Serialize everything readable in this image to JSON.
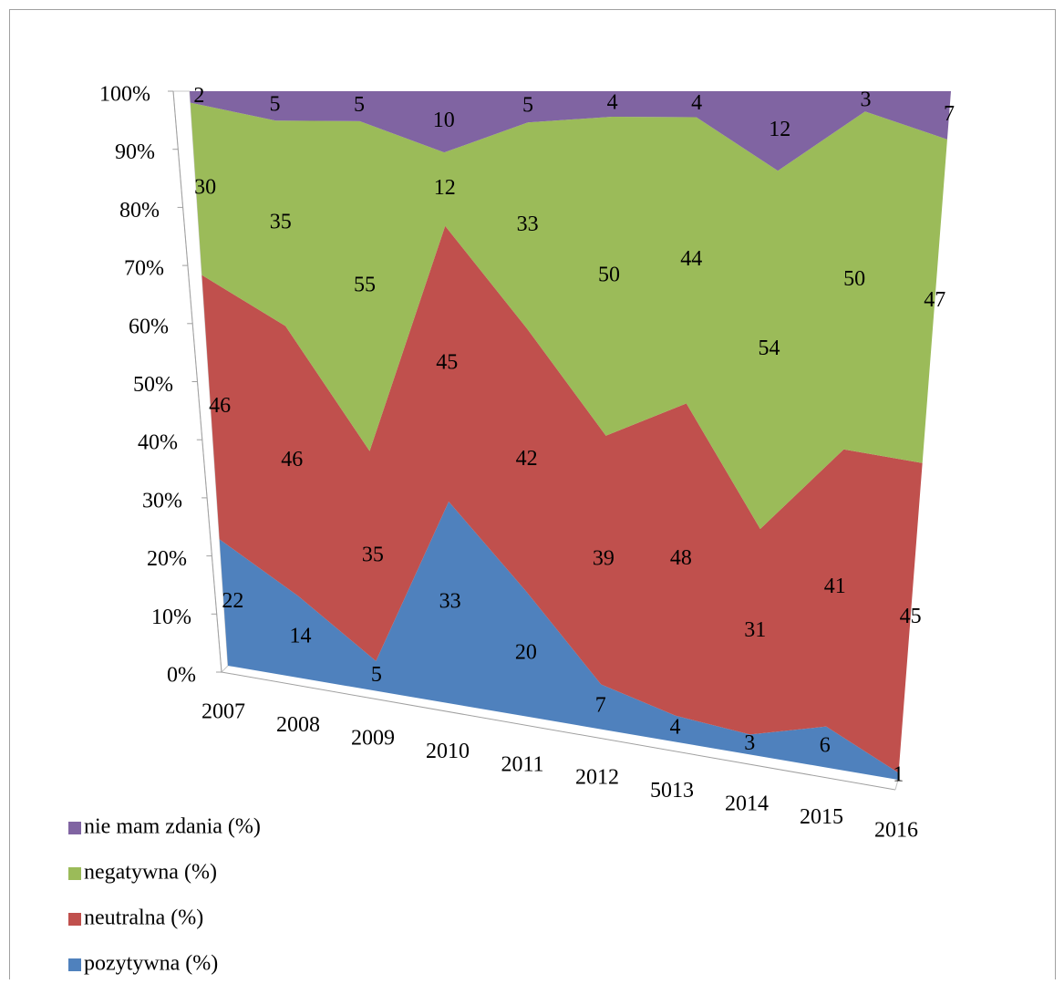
{
  "chart_data": {
    "type": "stacked_area_3d",
    "categories": [
      "2007",
      "2008",
      "2009",
      "2010",
      "2011",
      "2012",
      "5013",
      "2014",
      "2015",
      "2016"
    ],
    "series": [
      {
        "name": "pozytywna (%)",
        "color": "#4f81bd",
        "values": [
          22,
          14,
          5,
          33,
          20,
          7,
          4,
          3,
          6,
          1
        ]
      },
      {
        "name": "neutralna (%)",
        "color": "#c0504d",
        "values": [
          46,
          46,
          35,
          45,
          42,
          39,
          48,
          31,
          41,
          45
        ]
      },
      {
        "name": "negatywna (%)",
        "color": "#9bbb59",
        "values": [
          30,
          35,
          55,
          12,
          33,
          50,
          44,
          54,
          50,
          47
        ]
      },
      {
        "name": "nie mam zdania (%)",
        "color": "#8064a2",
        "values": [
          2,
          5,
          5,
          10,
          5,
          4,
          4,
          12,
          3,
          7
        ]
      }
    ],
    "ylim": [
      0,
      100
    ],
    "yticks": [
      {
        "value": 0,
        "label": "0%"
      },
      {
        "value": 10,
        "label": "10%"
      },
      {
        "value": 20,
        "label": "20%"
      },
      {
        "value": 30,
        "label": "30%"
      },
      {
        "value": 40,
        "label": "40%"
      },
      {
        "value": 50,
        "label": "50%"
      },
      {
        "value": 60,
        "label": "60%"
      },
      {
        "value": 70,
        "label": "70%"
      },
      {
        "value": 80,
        "label": "80%"
      },
      {
        "value": 90,
        "label": "90%"
      },
      {
        "value": 100,
        "label": "100%"
      }
    ],
    "stacked_percent": true,
    "legend": "bottom-left"
  }
}
